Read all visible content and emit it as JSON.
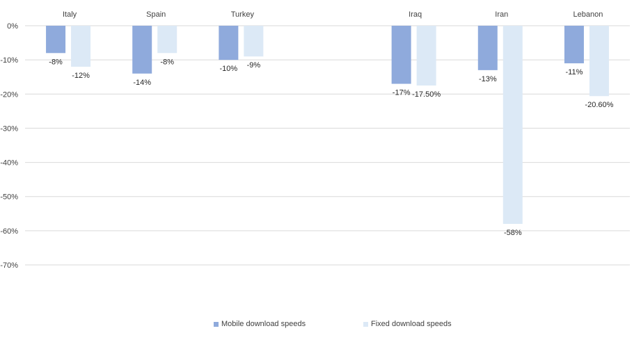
{
  "chart_data": {
    "type": "bar",
    "categories": [
      "Italy",
      "Spain",
      "Turkey",
      "",
      "Iraq",
      "Iran",
      "Lebanon"
    ],
    "series": [
      {
        "name": "Mobile download speeds",
        "values": [
          -8,
          -14,
          -10,
          null,
          -17,
          -13,
          -11
        ],
        "labels": [
          "-8%",
          "-14%",
          "-10%",
          "",
          "-17%",
          "-13%",
          "-11%"
        ],
        "color": "#8faadc"
      },
      {
        "name": "Fixed download speeds",
        "values": [
          -12,
          -8,
          -9,
          null,
          -17.5,
          -58,
          -20.6
        ],
        "labels": [
          "-12%",
          "-8%",
          "-9%",
          "",
          "-17.50%",
          "-58%",
          "-20.60%"
        ],
        "color": "#dce9f6"
      }
    ],
    "yticks": [
      0,
      -10,
      -20,
      -30,
      -40,
      -50,
      -60,
      -70
    ],
    "ytick_labels": [
      "0%",
      "-10%",
      "-20%",
      "-30%",
      "-40%",
      "-50%",
      "-60%",
      "-70%"
    ],
    "ylim": [
      -70,
      0
    ],
    "category_labels_position": "top",
    "grid": true,
    "gridline_color": "#d9d9d9",
    "legend_position": "bottom",
    "title": "",
    "xlabel": "",
    "ylabel": ""
  }
}
